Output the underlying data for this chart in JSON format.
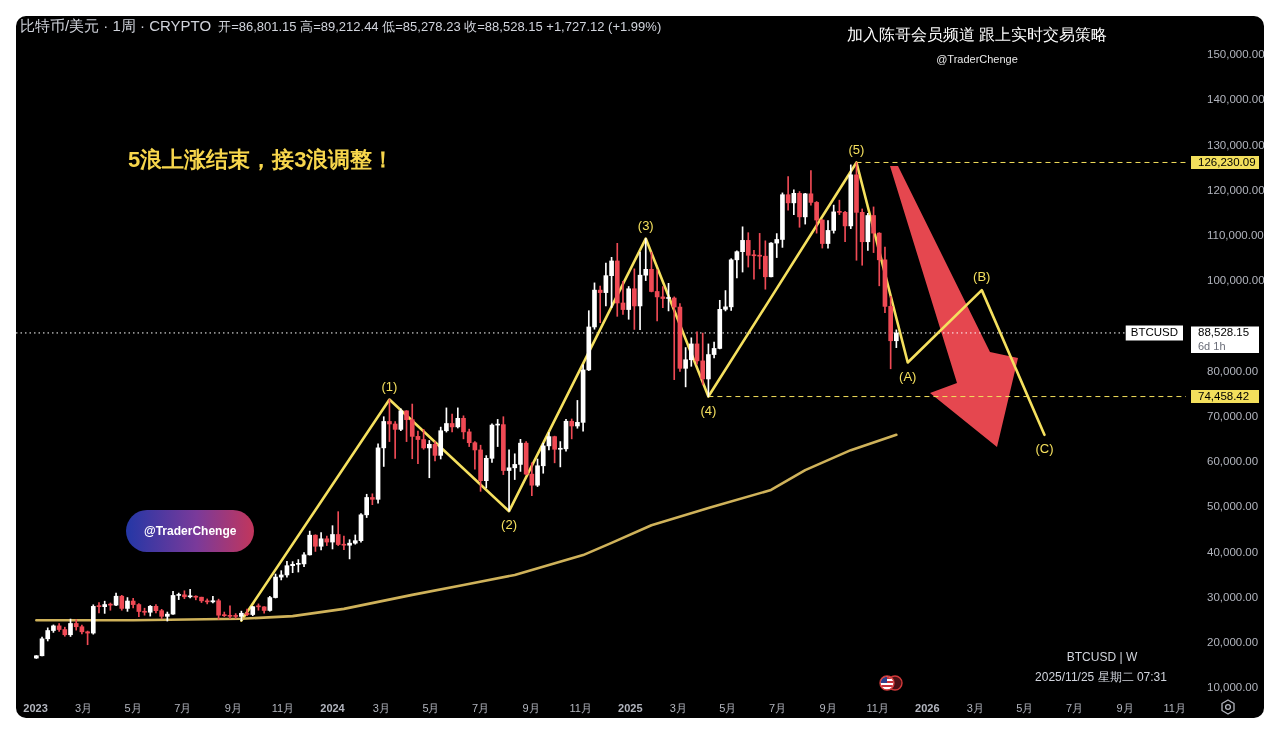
{
  "chart_data": {
    "type": "candlestick",
    "title": "比特币/美元 · 1周 · CRYPTO",
    "subtitle": "开=86,801.15 高=89,212.44 低=85,278.23 收=88,528.15 +1,727.12 (+1.99%)",
    "x": [
      "2023-01-02",
      "2023-01-09",
      "2023-01-16",
      "2023-01-23",
      "2023-01-30",
      "2023-02-06",
      "2023-02-13",
      "2023-02-20",
      "2023-02-27",
      "2023-03-06",
      "2023-03-13",
      "2023-03-20",
      "2023-03-27",
      "2023-04-03",
      "2023-04-10",
      "2023-04-17",
      "2023-04-24",
      "2023-05-01",
      "2023-05-08",
      "2023-05-15",
      "2023-05-22",
      "2023-05-29",
      "2023-06-05",
      "2023-06-12",
      "2023-06-19",
      "2023-06-26",
      "2023-07-03",
      "2023-07-10",
      "2023-07-17",
      "2023-07-24",
      "2023-07-31",
      "2023-08-07",
      "2023-08-14",
      "2023-08-21",
      "2023-08-28",
      "2023-09-04",
      "2023-09-11",
      "2023-09-18",
      "2023-09-25",
      "2023-10-02",
      "2023-10-09",
      "2023-10-16",
      "2023-10-23",
      "2023-10-30",
      "2023-11-06",
      "2023-11-13",
      "2023-11-20",
      "2023-11-27",
      "2023-12-04",
      "2023-12-11",
      "2023-12-18",
      "2023-12-25",
      "2024-01-01",
      "2024-01-08",
      "2024-01-15",
      "2024-01-22",
      "2024-01-29",
      "2024-02-05",
      "2024-02-12",
      "2024-02-19",
      "2024-02-26",
      "2024-03-04",
      "2024-03-11",
      "2024-03-18",
      "2024-03-25",
      "2024-04-01",
      "2024-04-08",
      "2024-04-15",
      "2024-04-22",
      "2024-04-29",
      "2024-05-06",
      "2024-05-13",
      "2024-05-20",
      "2024-05-27",
      "2024-06-03",
      "2024-06-10",
      "2024-06-17",
      "2024-06-24",
      "2024-07-01",
      "2024-07-08",
      "2024-07-15",
      "2024-07-22",
      "2024-07-29",
      "2024-08-05",
      "2024-08-12",
      "2024-08-19",
      "2024-08-26",
      "2024-09-02",
      "2024-09-09",
      "2024-09-16",
      "2024-09-23",
      "2024-09-30",
      "2024-10-07",
      "2024-10-14",
      "2024-10-21",
      "2024-10-28",
      "2024-11-04",
      "2024-11-11",
      "2024-11-18",
      "2024-11-25",
      "2024-12-02",
      "2024-12-09",
      "2024-12-16",
      "2024-12-23",
      "2024-12-30",
      "2025-01-06",
      "2025-01-13",
      "2025-01-20",
      "2025-01-27",
      "2025-02-03",
      "2025-02-10",
      "2025-02-17",
      "2025-02-24",
      "2025-03-03",
      "2025-03-10",
      "2025-03-17",
      "2025-03-24",
      "2025-03-31",
      "2025-04-07",
      "2025-04-14",
      "2025-04-21",
      "2025-04-28",
      "2025-05-05",
      "2025-05-12",
      "2025-05-19",
      "2025-05-26",
      "2025-06-02",
      "2025-06-09",
      "2025-06-16",
      "2025-06-23",
      "2025-06-30",
      "2025-07-07",
      "2025-07-14",
      "2025-07-21",
      "2025-07-28",
      "2025-08-04",
      "2025-08-11",
      "2025-08-18",
      "2025-08-25",
      "2025-09-01",
      "2025-09-08",
      "2025-09-15",
      "2025-09-22",
      "2025-09-29",
      "2025-10-06",
      "2025-10-13",
      "2025-10-20",
      "2025-10-27",
      "2025-11-03",
      "2025-11-10",
      "2025-11-17",
      "2025-11-24"
    ],
    "ohlc": [
      [
        16620,
        17180,
        16540,
        17130
      ],
      [
        17130,
        21250,
        17100,
        20880
      ],
      [
        20880,
        23300,
        20400,
        22710
      ],
      [
        22710,
        23950,
        22300,
        23740
      ],
      [
        23740,
        24250,
        22500,
        22930
      ],
      [
        22930,
        23450,
        21450,
        21780
      ],
      [
        21780,
        25250,
        21400,
        24270
      ],
      [
        24270,
        25100,
        22800,
        23550
      ],
      [
        23550,
        23900,
        21970,
        22430
      ],
      [
        22430,
        22600,
        19570,
        22150
      ],
      [
        22150,
        28400,
        21900,
        28050
      ],
      [
        28050,
        28900,
        26600,
        27990
      ],
      [
        27990,
        29200,
        26500,
        28460
      ],
      [
        28460,
        28800,
        27200,
        28330
      ],
      [
        28330,
        31000,
        28200,
        30300
      ],
      [
        30300,
        30500,
        27200,
        27600
      ],
      [
        27600,
        30000,
        26950,
        29230
      ],
      [
        29230,
        29850,
        27700,
        28450
      ],
      [
        28450,
        28650,
        25800,
        26920
      ],
      [
        26920,
        27650,
        26100,
        26750
      ],
      [
        26750,
        28250,
        25900,
        28070
      ],
      [
        28070,
        28450,
        26600,
        27100
      ],
      [
        27100,
        27400,
        25350,
        25850
      ],
      [
        25850,
        26800,
        24800,
        26340
      ],
      [
        26340,
        31400,
        26250,
        30470
      ],
      [
        30470,
        31000,
        29550,
        30600
      ],
      [
        30600,
        31500,
        29750,
        30170
      ],
      [
        30170,
        31800,
        29950,
        30250
      ],
      [
        30250,
        30400,
        29500,
        30080
      ],
      [
        30080,
        30100,
        28900,
        29280
      ],
      [
        29280,
        29700,
        28600,
        29050
      ],
      [
        29050,
        30250,
        28800,
        29300
      ],
      [
        29300,
        29650,
        25200,
        26100
      ],
      [
        26100,
        26800,
        25800,
        26000
      ],
      [
        26000,
        28150,
        25350,
        25850
      ],
      [
        25850,
        26450,
        25400,
        25830
      ],
      [
        25830,
        27000,
        24900,
        26530
      ],
      [
        26530,
        27450,
        26000,
        26250
      ],
      [
        26250,
        28050,
        26000,
        27980
      ],
      [
        27980,
        28600,
        27200,
        27950
      ],
      [
        27950,
        28000,
        26550,
        27150
      ],
      [
        27150,
        30300,
        27000,
        30000
      ],
      [
        30000,
        35200,
        29900,
        34530
      ],
      [
        34530,
        35950,
        33900,
        35000
      ],
      [
        35000,
        38000,
        34500,
        37050
      ],
      [
        37050,
        37950,
        35500,
        37350
      ],
      [
        37350,
        38400,
        35650,
        37450
      ],
      [
        37450,
        39950,
        36850,
        39450
      ],
      [
        39450,
        44700,
        39400,
        43800
      ],
      [
        43800,
        43900,
        40200,
        41350
      ],
      [
        41350,
        44400,
        40550,
        43000
      ],
      [
        43000,
        43600,
        41500,
        42280
      ],
      [
        42280,
        45900,
        40750,
        43950
      ],
      [
        43950,
        49000,
        41500,
        41730
      ],
      [
        41730,
        43600,
        40600,
        41580
      ],
      [
        41580,
        42800,
        38550,
        42030
      ],
      [
        42030,
        43850,
        41800,
        42580
      ],
      [
        42580,
        48600,
        42250,
        48300
      ],
      [
        48300,
        52850,
        47700,
        52140
      ],
      [
        52140,
        52950,
        50550,
        51730
      ],
      [
        51730,
        64000,
        50900,
        63110
      ],
      [
        63110,
        70000,
        59000,
        68950
      ],
      [
        68950,
        73800,
        64500,
        68390
      ],
      [
        68390,
        68900,
        60800,
        67200
      ],
      [
        67200,
        71750,
        66900,
        71300
      ],
      [
        71300,
        71350,
        64500,
        69350
      ],
      [
        69350,
        72800,
        60700,
        65650
      ],
      [
        65650,
        66850,
        59600,
        64950
      ],
      [
        64950,
        67200,
        62800,
        63100
      ],
      [
        63100,
        64750,
        56500,
        63900
      ],
      [
        63900,
        64500,
        60200,
        61450
      ],
      [
        61450,
        67700,
        60650,
        66900
      ],
      [
        66900,
        71950,
        66600,
        68500
      ],
      [
        68500,
        70600,
        66650,
        67750
      ],
      [
        67750,
        71950,
        67500,
        69650
      ],
      [
        69650,
        70200,
        65100,
        66650
      ],
      [
        66650,
        67250,
        63400,
        64250
      ],
      [
        64250,
        64500,
        58400,
        62650
      ],
      [
        62650,
        63700,
        53500,
        55850
      ],
      [
        55850,
        61400,
        54250,
        60800
      ],
      [
        60800,
        68400,
        59900,
        68150
      ],
      [
        68150,
        69400,
        63400,
        68250
      ],
      [
        68250,
        70000,
        57200,
        58100
      ],
      [
        58100,
        62700,
        49100,
        58700
      ],
      [
        58700,
        61800,
        56100,
        59450
      ],
      [
        59450,
        65000,
        57900,
        64150
      ],
      [
        64150,
        64500,
        57200,
        57300
      ],
      [
        57300,
        59800,
        52550,
        54850
      ],
      [
        54850,
        60650,
        54550,
        59150
      ],
      [
        59150,
        64150,
        57500,
        63550
      ],
      [
        63550,
        66500,
        62650,
        65600
      ],
      [
        65600,
        65700,
        59800,
        62800
      ],
      [
        62800,
        64500,
        58900,
        62900
      ],
      [
        62900,
        69400,
        62400,
        69000
      ],
      [
        69000,
        69500,
        65100,
        67950
      ],
      [
        67950,
        73600,
        67450,
        68750
      ],
      [
        68750,
        81500,
        66800,
        80350
      ],
      [
        80350,
        93450,
        80200,
        89850
      ],
      [
        89850,
        99600,
        89350,
        98000
      ],
      [
        98000,
        98900,
        90800,
        97450
      ],
      [
        97450,
        104000,
        94500,
        101200
      ],
      [
        101200,
        105250,
        94150,
        104450
      ],
      [
        104450,
        108350,
        92200,
        95150
      ],
      [
        95150,
        99950,
        92600,
        93700
      ],
      [
        93700,
        98800,
        91550,
        98300
      ],
      [
        98300,
        102700,
        89300,
        94500
      ],
      [
        94500,
        106400,
        89250,
        101300
      ],
      [
        101300,
        109400,
        100100,
        102600
      ],
      [
        102600,
        106400,
        97600,
        97700
      ],
      [
        97700,
        102500,
        91200,
        96500
      ],
      [
        96500,
        98800,
        94100,
        96150
      ],
      [
        96150,
        99500,
        93400,
        96250
      ],
      [
        96250,
        96500,
        78200,
        94250
      ],
      [
        94250,
        95000,
        80000,
        80700
      ],
      [
        80700,
        85300,
        76600,
        82600
      ],
      [
        82600,
        87450,
        81150,
        86100
      ],
      [
        86100,
        88800,
        81600,
        82350
      ],
      [
        82350,
        88500,
        77100,
        78350
      ],
      [
        78350,
        86100,
        74458.42,
        83750
      ],
      [
        83750,
        86500,
        83000,
        85100
      ],
      [
        85100,
        95750,
        85000,
        93750
      ],
      [
        93750,
        97900,
        93400,
        94300
      ],
      [
        94300,
        104950,
        93500,
        104700
      ],
      [
        104700,
        106700,
        100700,
        106500
      ],
      [
        106500,
        112000,
        102000,
        109000
      ],
      [
        109000,
        110700,
        103100,
        105700
      ],
      [
        105700,
        106800,
        100400,
        105600
      ],
      [
        105600,
        110550,
        102700,
        105500
      ],
      [
        105500,
        108900,
        98200,
        100950
      ],
      [
        100950,
        108500,
        100900,
        108400
      ],
      [
        108400,
        110500,
        105200,
        109200
      ],
      [
        109200,
        119500,
        107450,
        119100
      ],
      [
        119100,
        123100,
        115700,
        117300
      ],
      [
        117300,
        120200,
        114700,
        119400
      ],
      [
        119400,
        119800,
        111900,
        114200
      ],
      [
        114200,
        119400,
        112600,
        119300
      ],
      [
        119300,
        124450,
        116800,
        117400
      ],
      [
        117400,
        117600,
        110600,
        113500
      ],
      [
        113500,
        113600,
        107300,
        108300
      ],
      [
        108300,
        113400,
        107300,
        111200
      ],
      [
        111200,
        116800,
        110600,
        115300
      ],
      [
        115300,
        117900,
        114700,
        115200
      ],
      [
        115200,
        115400,
        108700,
        112200
      ],
      [
        112200,
        125700,
        111600,
        123500
      ],
      [
        123500,
        126230.09,
        104600,
        115200
      ],
      [
        115200,
        115950,
        103500,
        108700
      ],
      [
        108700,
        115000,
        106800,
        114500
      ],
      [
        114500,
        116400,
        106300,
        110600
      ],
      [
        110600,
        110700,
        98950,
        104700
      ],
      [
        104700,
        107500,
        93000,
        94400
      ],
      [
        94400,
        96650,
        80600,
        86800
      ],
      [
        86801.15,
        89212.44,
        85278.23,
        88528.15
      ]
    ],
    "colors": [
      "#ffffff",
      "#ffffff",
      "#ffffff",
      "#ffffff",
      "#ef4a55",
      "#ef4a55",
      "#ffffff",
      "#ef4a55",
      "#ef4a55",
      "#ef4a55",
      "#ffffff",
      "#ef4a55",
      "#ffffff",
      "#ef4a55",
      "#ffffff",
      "#ef4a55",
      "#ffffff",
      "#ef4a55",
      "#ef4a55",
      "#ef4a55",
      "#ffffff",
      "#ef4a55",
      "#ef4a55",
      "#ffffff",
      "#ffffff",
      "#ffffff",
      "#ef4a55",
      "#ffffff",
      "#ef4a55",
      "#ef4a55",
      "#ef4a55",
      "#ffffff",
      "#ef4a55",
      "#ef4a55",
      "#ef4a55",
      "#ef4a55",
      "#ffffff",
      "#ef4a55",
      "#ffffff",
      "#ef4a55",
      "#ef4a55",
      "#ffffff",
      "#ffffff",
      "#ffffff",
      "#ffffff",
      "#ffffff",
      "#ffffff",
      "#ffffff",
      "#ffffff",
      "#ef4a55",
      "#ffffff",
      "#ef4a55",
      "#ffffff",
      "#ef4a55",
      "#ef4a55",
      "#ffffff",
      "#ffffff",
      "#ffffff",
      "#ffffff",
      "#ef4a55",
      "#ffffff",
      "#ffffff",
      "#ef4a55",
      "#ef4a55",
      "#ffffff",
      "#ef4a55",
      "#ef4a55",
      "#ef4a55",
      "#ef4a55",
      "#ffffff",
      "#ef4a55",
      "#ffffff",
      "#ffffff",
      "#ef4a55",
      "#ffffff",
      "#ef4a55",
      "#ef4a55",
      "#ef4a55",
      "#ef4a55",
      "#ffffff",
      "#ffffff",
      "#ffffff",
      "#ef4a55",
      "#ffffff",
      "#ffffff",
      "#ffffff",
      "#ef4a55",
      "#ef4a55",
      "#ffffff",
      "#ffffff",
      "#ffffff",
      "#ef4a55",
      "#ffffff",
      "#ffffff",
      "#ef4a55",
      "#ffffff",
      "#ffffff",
      "#ffffff",
      "#ffffff",
      "#ef4a55",
      "#ffffff",
      "#ffffff",
      "#ef4a55",
      "#ef4a55",
      "#ffffff",
      "#ef4a55",
      "#ffffff",
      "#ffffff",
      "#ef4a55",
      "#ef4a55",
      "#ef4a55",
      "#ffffff",
      "#ef4a55",
      "#ef4a55",
      "#ffffff",
      "#ffffff",
      "#ef4a55",
      "#ef4a55",
      "#ffffff",
      "#ffffff",
      "#ffffff",
      "#ffffff",
      "#ffffff",
      "#ffffff",
      "#ffffff",
      "#ef4a55",
      "#ef4a55",
      "#ef4a55",
      "#ef4a55",
      "#ffffff",
      "#ffffff",
      "#ffffff",
      "#ef4a55",
      "#ffffff",
      "#ef4a55",
      "#ffffff",
      "#ef4a55",
      "#ef4a55",
      "#ef4a55",
      "#ffffff",
      "#ffffff",
      "#ef4a55",
      "#ef4a55",
      "#ffffff",
      "#ef4a55",
      "#ef4a55",
      "#ffffff",
      "#ef4a55",
      "#ef4a55",
      "#ef4a55",
      "#ef4a55",
      "#ffffff"
    ],
    "series": [
      {
        "type": "line",
        "color": "#cfb25a",
        "x": [
          "2023-01-02",
          "2023-05-01",
          "2023-09-11",
          "2023-11-13",
          "2024-01-15",
          "2024-04-08",
          "2024-06-10",
          "2024-08-12",
          "2024-11-04",
          "2024-12-09",
          "2025-01-27",
          "2025-04-07",
          "2025-06-23",
          "2025-08-04",
          "2025-09-29",
          "2025-11-24"
        ],
        "values": [
          25000,
          25000,
          25300,
          25900,
          27500,
          30600,
          32800,
          35000,
          39400,
          42100,
          46000,
          49800,
          53800,
          58200,
          62600,
          66000
        ]
      },
      {
        "type": "line",
        "color": "#f5e05e",
        "x": [
          "2023-09-11",
          "2024-03-11",
          "2024-08-05",
          "2025-01-20",
          "2025-04-07",
          "2025-10-06",
          "2025-12-08",
          "2026-03-09",
          "2026-05-25"
        ],
        "values": [
          24900,
          73800,
          49100,
          109400,
          74458.42,
          126230.09,
          82000,
          98000,
          66000
        ]
      }
    ],
    "xlim": [
      "2022-12-08",
      "2026-11-15"
    ],
    "xticks": [
      {
        "value": "2023-01-01",
        "label": "2023"
      },
      {
        "value": "2023-03-01",
        "label": "3月"
      },
      {
        "value": "2023-05-01",
        "label": "5月"
      },
      {
        "value": "2023-07-01",
        "label": "7月"
      },
      {
        "value": "2023-09-01",
        "label": "9月"
      },
      {
        "value": "2023-11-01",
        "label": "11月"
      },
      {
        "value": "2024-01-01",
        "label": "2024"
      },
      {
        "value": "2024-03-01",
        "label": "3月"
      },
      {
        "value": "2024-05-01",
        "label": "5月"
      },
      {
        "value": "2024-07-01",
        "label": "7月"
      },
      {
        "value": "2024-09-01",
        "label": "9月"
      },
      {
        "value": "2024-11-01",
        "label": "11月"
      },
      {
        "value": "2025-01-01",
        "label": "2025"
      },
      {
        "value": "2025-03-01",
        "label": "3月"
      },
      {
        "value": "2025-05-01",
        "label": "5月"
      },
      {
        "value": "2025-07-01",
        "label": "7月"
      },
      {
        "value": "2025-09-01",
        "label": "9月"
      },
      {
        "value": "2025-11-01",
        "label": "11月"
      },
      {
        "value": "2026-01-01",
        "label": "2026"
      },
      {
        "value": "2026-03-01",
        "label": "3月"
      },
      {
        "value": "2026-05-01",
        "label": "5月"
      },
      {
        "value": "2026-07-01",
        "label": "7月"
      },
      {
        "value": "2026-09-01",
        "label": "9月"
      },
      {
        "value": "2026-11-01",
        "label": "11月"
      }
    ],
    "ylim": [
      10000,
      150000
    ],
    "yticks": [
      {
        "value": 10000,
        "label": "10,000.00"
      },
      {
        "value": 20000,
        "label": "20,000.00"
      },
      {
        "value": 30000,
        "label": "30,000.00"
      },
      {
        "value": 40000,
        "label": "40,000.00"
      },
      {
        "value": 50000,
        "label": "50,000.00"
      },
      {
        "value": 60000,
        "label": "60,000.00"
      },
      {
        "value": 70000,
        "label": "70,000.00"
      },
      {
        "value": 80000,
        "label": "80,000.00"
      },
      {
        "value": 100000,
        "label": "100,000.00"
      },
      {
        "value": 110000,
        "label": "110,000.00"
      },
      {
        "value": 120000,
        "label": "120,000.00"
      },
      {
        "value": 130000,
        "label": "130,000.00"
      },
      {
        "value": 140000,
        "label": "140,000.00"
      },
      {
        "value": 150000,
        "label": "150,000.00"
      }
    ],
    "ref_lines": [
      {
        "axis": "y",
        "value": 126230.09,
        "label": "126,230.09",
        "color": "#f3df5c",
        "line_style": "dashed"
      },
      {
        "axis": "y",
        "value": 88528.15,
        "label": "88,528.15",
        "color": "#ffffff",
        "line_style": "dotted"
      },
      {
        "axis": "y",
        "value": 74458.42,
        "label": "74,458.42",
        "color": "#f3df5c",
        "line_style": "dashed"
      }
    ],
    "annotations": [
      "5浪上涨结束，接3浪调整！",
      "加入陈哥会员频道 跟上实时交易策略",
      "@TraderChenge",
      "@TraderChenge",
      "BTCUSD | W",
      "2025/11/25 星期二 07:31",
      "6d 1h",
      {
        "text": "(1)",
        "x": "2024-03-11",
        "y": 73800
      },
      {
        "text": "(2)",
        "x": "2024-08-05",
        "y": 49100
      },
      {
        "text": "(3)",
        "x": "2025-01-20",
        "y": 109400
      },
      {
        "text": "(4)",
        "x": "2025-04-07",
        "y": 74458.42
      },
      {
        "text": "(5)",
        "x": "2025-10-06",
        "y": 126230.09
      },
      {
        "text": "(A)",
        "x": "2025-12-08",
        "y": 82000
      },
      {
        "text": "(B)",
        "x": "2026-03-09",
        "y": 98000
      },
      {
        "text": "(C)",
        "x": "2026-05-25",
        "y": 66000
      },
      {
        "text": "BTCUSD",
        "y": 88528.15
      }
    ]
  }
}
